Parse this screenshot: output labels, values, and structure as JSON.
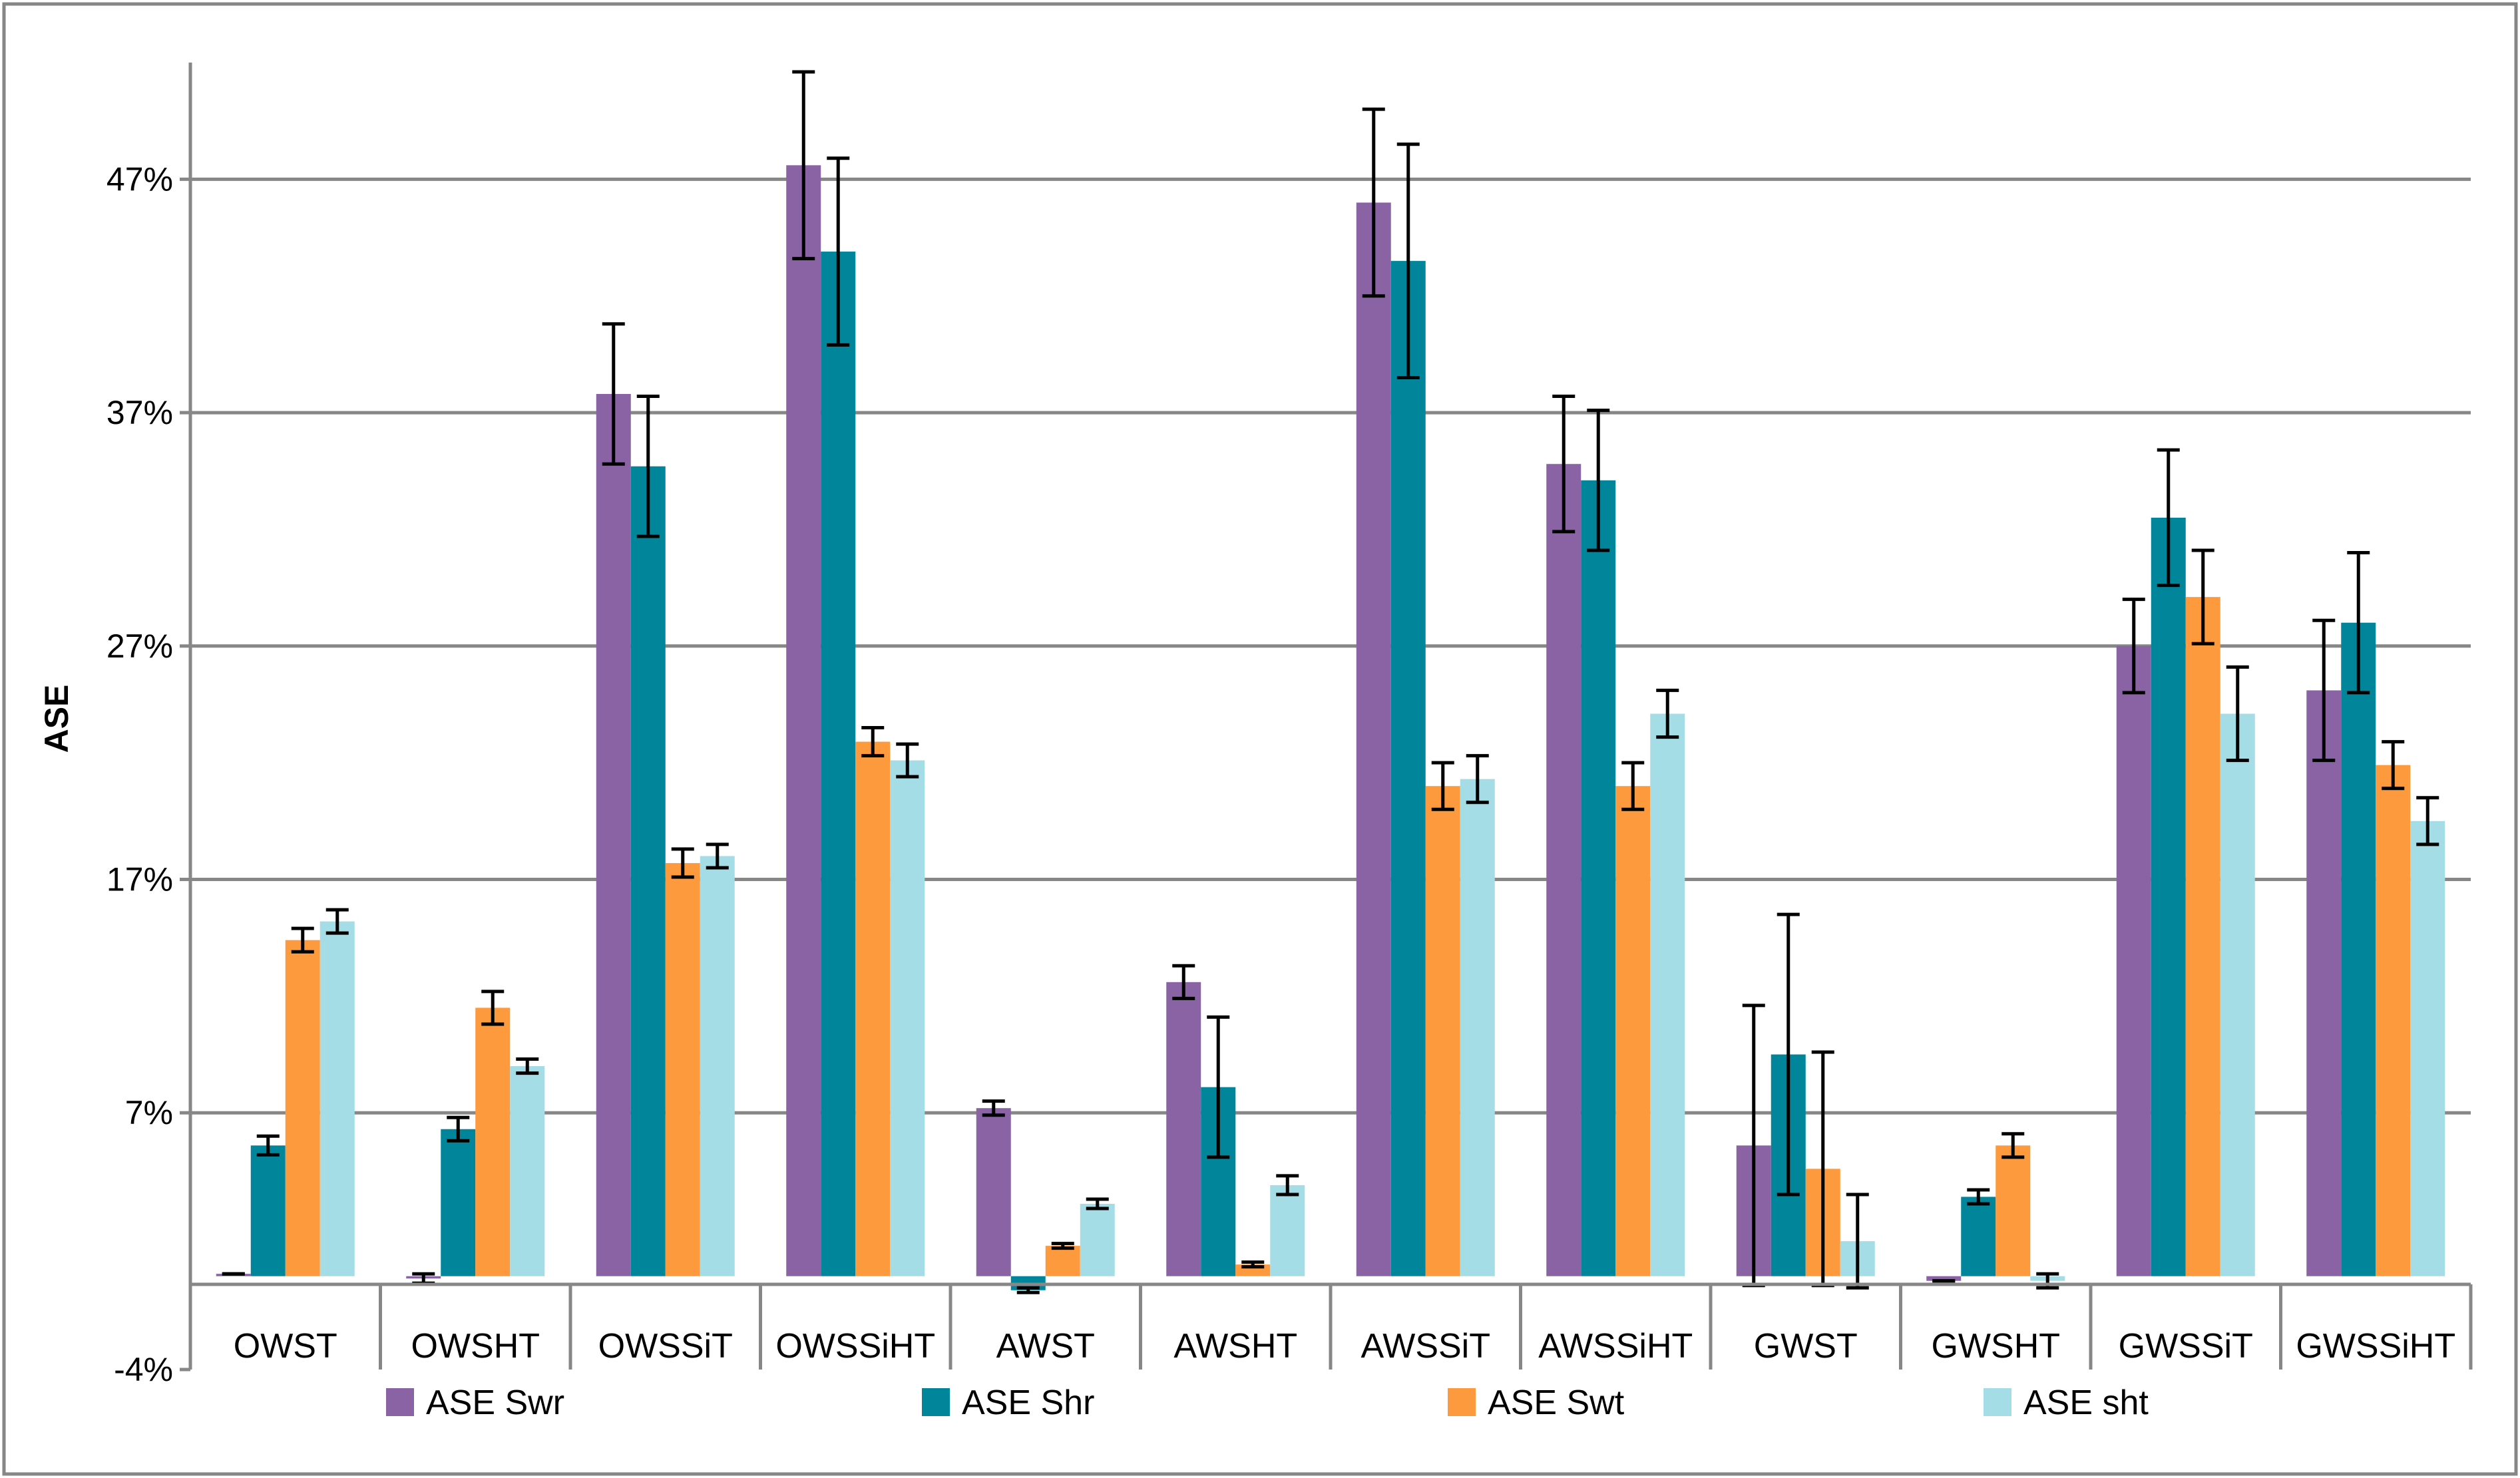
{
  "chart_data": {
    "type": "bar",
    "ylabel": "ASE",
    "xlabel": "",
    "ylim": [
      -4,
      52
    ],
    "yticks": [
      -4,
      7,
      17,
      27,
      37,
      47
    ],
    "ytick_labels": [
      "-4%",
      "7%",
      "17%",
      "27%",
      "37%",
      "47%"
    ],
    "grid": true,
    "legend_position": "bottom",
    "categories": [
      "OWST",
      "OWSHT",
      "OWSSiT",
      "OWSSiHT",
      "AWST",
      "AWSHT",
      "AWSSiT",
      "AWSSiHT",
      "GWST",
      "GWSHT",
      "GWSSiT",
      "GWSSiHT"
    ],
    "series": [
      {
        "name": "ASE Swr",
        "color": "#8a63a5",
        "values": [
          0.1,
          -0.1,
          37.8,
          47.6,
          7.2,
          12.6,
          46.0,
          34.8,
          5.6,
          -0.2,
          27.0,
          25.1
        ],
        "errors": [
          0.0,
          0.2,
          3.0,
          4.0,
          0.3,
          0.7,
          4.0,
          2.9,
          6.0,
          0.0,
          2.0,
          3.0
        ]
      },
      {
        "name": "ASE Shr",
        "color": "#00859b",
        "values": [
          5.6,
          6.3,
          34.7,
          43.9,
          -0.6,
          8.1,
          43.5,
          34.1,
          9.5,
          3.4,
          32.5,
          28.0
        ],
        "errors": [
          0.4,
          0.5,
          3.0,
          4.0,
          0.1,
          3.0,
          5.0,
          3.0,
          6.0,
          0.3,
          2.9,
          3.0
        ]
      },
      {
        "name": "ASE Swt",
        "color": "#fd9a3d",
        "values": [
          14.4,
          11.5,
          17.7,
          22.9,
          1.3,
          0.5,
          21.0,
          21.0,
          4.6,
          5.6,
          29.1,
          21.9
        ],
        "errors": [
          0.5,
          0.7,
          0.6,
          0.6,
          0.1,
          0.1,
          1.0,
          1.0,
          5.0,
          0.5,
          2.0,
          1.0
        ]
      },
      {
        "name": "ASE sht",
        "color": "#a5dde6",
        "values": [
          15.2,
          9.0,
          18.0,
          22.1,
          3.1,
          3.9,
          21.3,
          24.1,
          1.5,
          -0.2,
          24.1,
          19.5
        ],
        "errors": [
          0.5,
          0.3,
          0.5,
          0.7,
          0.2,
          0.4,
          1.0,
          1.0,
          2.0,
          0.3,
          2.0,
          1.0
        ]
      }
    ]
  }
}
